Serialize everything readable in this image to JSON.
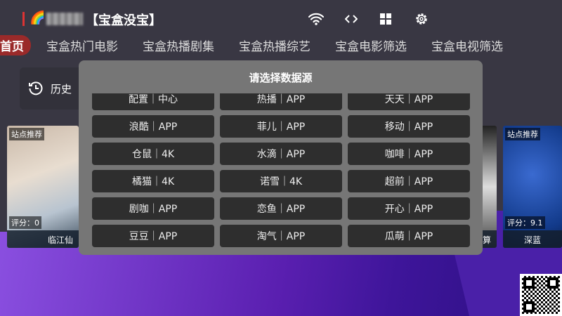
{
  "header": {
    "emoji": "🌈",
    "title": "【宝盒没宝】",
    "icons": [
      "wifi-icon",
      "code-icon",
      "grid-icon",
      "gear-icon"
    ]
  },
  "nav": {
    "tabs": [
      "首页",
      "宝盒热门电影",
      "宝盒热播剧集",
      "宝盒热播综艺",
      "宝盒电影筛选",
      "宝盒电视筛选"
    ],
    "active": 0
  },
  "history": {
    "label": "历史"
  },
  "posters": [
    {
      "badge": "站点推荐",
      "score": "评分：0",
      "name": "临江仙"
    },
    {
      "name": "算"
    },
    {
      "badge": "站点推荐",
      "score": "评分：9.1",
      "name": "深蓝"
    }
  ],
  "dialog": {
    "title": "请选择数据源",
    "options": [
      "配置｜中心",
      "热播｜APP",
      "天天｜APP",
      "浪酷｜APP",
      "菲儿｜APP",
      "移动｜APP",
      "仓鼠｜4K",
      "水滴｜APP",
      "咖啡｜APP",
      "橘猫｜4K",
      "诺雪｜4K",
      "超前｜APP",
      "剧咖｜APP",
      "恋鱼｜APP",
      "开心｜APP",
      "豆豆｜APP",
      "淘气｜APP",
      "瓜萌｜APP"
    ]
  }
}
